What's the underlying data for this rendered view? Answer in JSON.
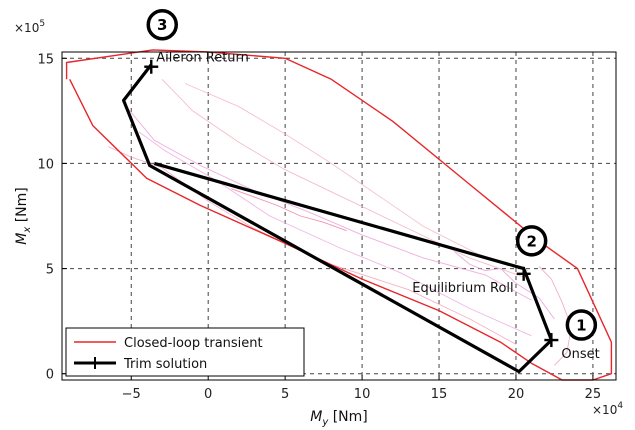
{
  "chart_data": {
    "type": "line",
    "xlabel_main": "M",
    "xlabel_sub": "y",
    "xlabel_unit": " [Nm]",
    "ylabel_main": "M",
    "ylabel_sub": "x",
    "ylabel_unit": " [Nm]",
    "x_multiplier": "×10",
    "x_multiplier_exp": "4",
    "y_multiplier": "×10",
    "y_multiplier_exp": "5",
    "xlim": [
      -9.5,
      26.5
    ],
    "ylim": [
      -0.3,
      15.3
    ],
    "grid": true,
    "x_ticks": [
      -5,
      0,
      5,
      10,
      15,
      20,
      25
    ],
    "x_tick_labels": [
      "−5",
      "0",
      "5",
      "10",
      "15",
      "20",
      "25"
    ],
    "y_ticks": [
      0,
      5,
      10,
      15
    ],
    "y_tick_labels": [
      "0",
      "5",
      "10",
      "15"
    ],
    "legend_position": "bottom-left",
    "series": [
      {
        "name": "Closed-loop transient",
        "color": "#e8262b",
        "x": [
          -9.0,
          -7.5,
          -4.0,
          -0.5,
          5.0,
          10.0,
          15.0,
          19.0,
          21.0,
          23.0,
          25.0,
          26.2,
          26.2,
          24.0,
          21.5,
          17.0,
          12.0,
          8.0,
          5.0,
          0.0,
          -3.6,
          -9.2,
          -9.2
        ],
        "y": [
          14.0,
          11.8,
          9.3,
          8.0,
          6.2,
          4.5,
          3.0,
          1.5,
          0.5,
          -0.3,
          -0.3,
          0.0,
          1.5,
          5.0,
          6.3,
          9.0,
          12.0,
          14.0,
          15.0,
          15.3,
          15.4,
          14.8,
          14.0
        ]
      },
      {
        "name": "Trim solution",
        "color": "#000000",
        "x": [
          -3.5,
          20.5,
          22.3,
          20.2,
          -3.8,
          -5.5,
          -3.7
        ],
        "y": [
          10.0,
          5.0,
          1.6,
          0.1,
          9.9,
          13.0,
          14.7
        ]
      }
    ],
    "trim_markers": [
      {
        "label": "Onset",
        "num": "1",
        "x": 22.3,
        "y": 1.6
      },
      {
        "label": "Equilibrium Roll",
        "num": "2",
        "x": 20.5,
        "y": 4.75
      },
      {
        "label": "Aileron Return",
        "num": "3",
        "x": -3.7,
        "y": 14.6
      }
    ]
  }
}
